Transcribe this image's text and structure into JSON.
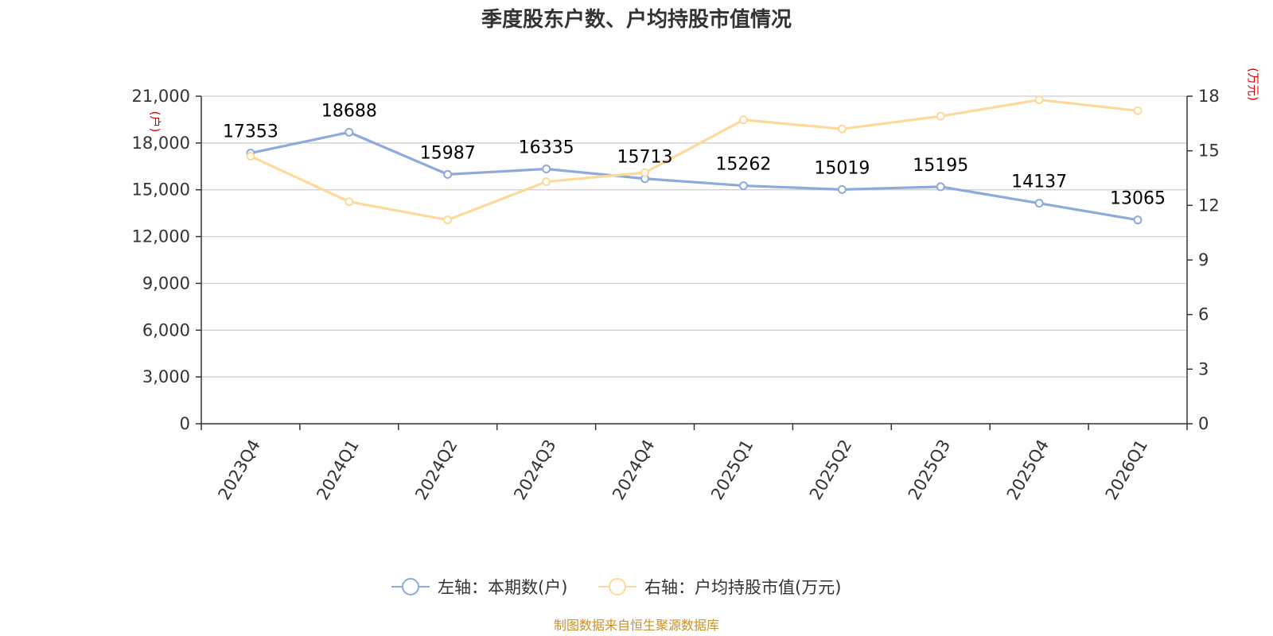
{
  "title": "季度股东户数、户均持股市值情况",
  "source": "制图数据来自恒生聚源数据库",
  "colors": {
    "left_series": "#8eaadb",
    "right_series": "#fdd99a",
    "grid": "#cccccc",
    "axis": "#333333",
    "unit": "#e00000",
    "source": "#c8912b"
  },
  "chart_data": {
    "type": "line",
    "title": "季度股东户数、户均持股市值情况",
    "categories": [
      "2023Q4",
      "2024Q1",
      "2024Q2",
      "2024Q3",
      "2024Q4",
      "2025Q1",
      "2025Q2",
      "2025Q3",
      "2025Q4",
      "2026Q1"
    ],
    "left_axis": {
      "unit": "(户)",
      "ylim": [
        0,
        21000
      ],
      "ticks": [
        0,
        3000,
        6000,
        9000,
        12000,
        15000,
        18000,
        21000
      ],
      "tick_labels": [
        "0",
        "3,000",
        "6,000",
        "9,000",
        "12,000",
        "15,000",
        "18,000",
        "21,000"
      ]
    },
    "right_axis": {
      "unit": "(万元)",
      "ylim": [
        0,
        18
      ],
      "ticks": [
        0,
        3,
        6,
        9,
        12,
        15,
        18
      ],
      "tick_labels": [
        "0",
        "3",
        "6",
        "9",
        "12",
        "15",
        "18"
      ]
    },
    "grid": true,
    "legend_position": "bottom-center",
    "series": [
      {
        "name": "左轴：本期数(户)",
        "axis": "left",
        "values": [
          17353,
          18688,
          15987,
          16335,
          15713,
          15262,
          15019,
          15195,
          14137,
          13065
        ],
        "labels": [
          "17353",
          "18688",
          "15987",
          "16335",
          "15713",
          "15262",
          "15019",
          "15195",
          "14137",
          "13065"
        ]
      },
      {
        "name": "右轴：户均持股市值(万元)",
        "axis": "right",
        "values": [
          14.7,
          12.2,
          11.2,
          13.3,
          13.8,
          16.7,
          16.2,
          16.9,
          17.8,
          17.2
        ]
      }
    ]
  }
}
